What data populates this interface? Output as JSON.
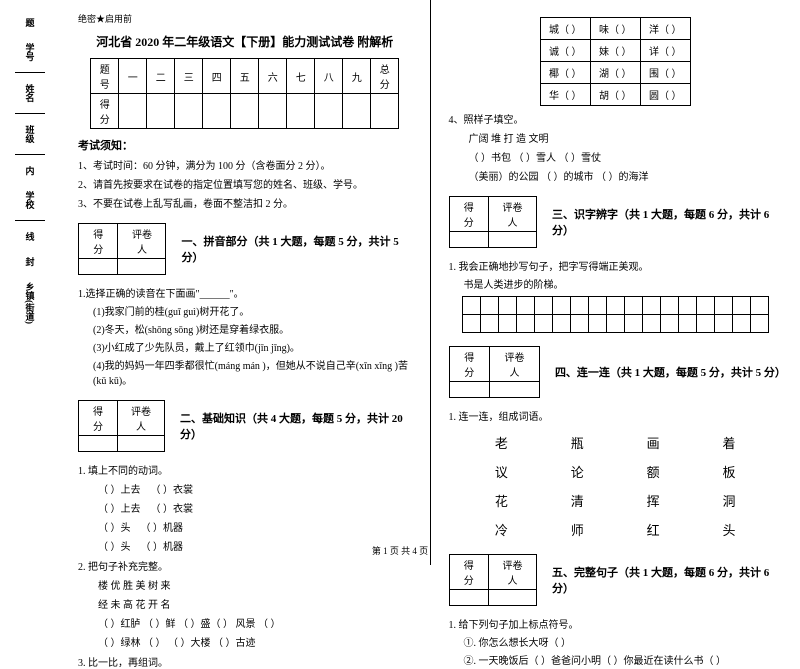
{
  "secret": "绝密★启用前",
  "title": "河北省 2020 年二年级语文【下册】能力测试试卷 附解析",
  "scoreHeaders": [
    "题号",
    "一",
    "二",
    "三",
    "四",
    "五",
    "六",
    "七",
    "八",
    "九",
    "总分"
  ],
  "scoreRow": "得分",
  "noticeTitle": "考试须知：",
  "notices": [
    "1、考试时间：60 分钟，满分为 100 分（含卷面分 2 分）。",
    "2、请首先按要求在试卷的指定位置填写您的姓名、班级、学号。",
    "3、不要在试卷上乱写乱画，卷面不整洁扣 2 分。"
  ],
  "scoreBoxLabels": [
    "得分",
    "评卷人"
  ],
  "sections": {
    "s1": "一、拼音部分（共 1 大题，每题 5 分，共计 5 分）",
    "s2": "二、基础知识（共 4 大题，每题 5 分，共计 20 分）",
    "s3": "三、识字辨字（共 1 大题，每题 6 分，共计 6 分）",
    "s4": "四、连一连（共 1 大题，每题 5 分，共计 5 分）",
    "s5": "五、完整句子（共 1 大题，每题 6 分，共计 6 分）"
  },
  "q1": {
    "stem": "1.选择正确的读音在下面画\"______\"。",
    "items": [
      "(1)我家门前的桂(guī  guì)树开花了。",
      "(2)冬天，松(shōng   sōng )树还是穿着绿衣服。",
      "(3)小红成了少先队员，戴上了红领巾(jīn  jīng)。",
      "(4)我的妈妈一年四季都很忙(máng  mán )，但她从不说自己辛(xīn  xīng )苦(kǔ  kū)。"
    ]
  },
  "q2": {
    "stem": "1. 填上不同的动词。",
    "rows": [
      [
        "（      ）上去",
        "（      ）衣裳"
      ],
      [
        "（      ）上去",
        "（      ）衣裳"
      ],
      [
        "（      ）头",
        "（      ）机器"
      ],
      [
        "（      ）头",
        "（      ）机器"
      ]
    ]
  },
  "q3": {
    "stem": "2. 把句子补充完整。",
    "line1": "楼    优    胜    美    树    来",
    "line2": "经    未    高    花    开    名",
    "line3": "（    ）红胪    （    ）鲜    （    ）盛（    ）    风景 （    ）",
    "line4": "（    ）绿林    （    ）    （    ）大楼    （    ）古迹"
  },
  "q4": "3. 比一比，再组词。",
  "charRows": [
    [
      "城（          ）",
      "味（          ）",
      "洋（          ）"
    ],
    [
      "诚（          ）",
      "妹（          ）",
      "详（          ）"
    ],
    [
      "椰（          ）",
      "湖（          ）",
      "围（          ）"
    ],
    [
      "华（          ）",
      "胡（          ）",
      "圆（          ）"
    ]
  ],
  "q5": {
    "stem": "4、照样子填空。",
    "line1": "广阔    堆    打    造    文明",
    "line2": "（    ）书包    （    ）雪人    （    ）雪仗",
    "line3": "（美丽）的公园    （    ）的城市    （    ）的海洋"
  },
  "q6": {
    "stem": "1. 我会正确地抄写句子，把字写得端正美观。",
    "text": "书是人类进步的阶梯。"
  },
  "q7": "1. 连一连，组成词语。",
  "matchRows": [
    [
      "老",
      "瓶",
      "画",
      "着"
    ],
    [
      "议",
      "论",
      "额",
      "板"
    ],
    [
      "花",
      "清",
      "挥",
      "洞"
    ],
    [
      "冷",
      "师",
      "红",
      "头"
    ]
  ],
  "q8": {
    "stem": "1. 给下列句子加上标点符号。",
    "items": [
      "①. 你怎么想长大呀（    ）",
      "②. 一天晚饭后（    ）爸爸问小明（    ）你最近在读什么书（    ）"
    ]
  },
  "marginLabels": [
    "题",
    "学号",
    "姓名",
    "班级",
    "内",
    "学校",
    "线",
    "封",
    "乡镇(街道)"
  ],
  "footer": "第 1 页 共 4 页"
}
